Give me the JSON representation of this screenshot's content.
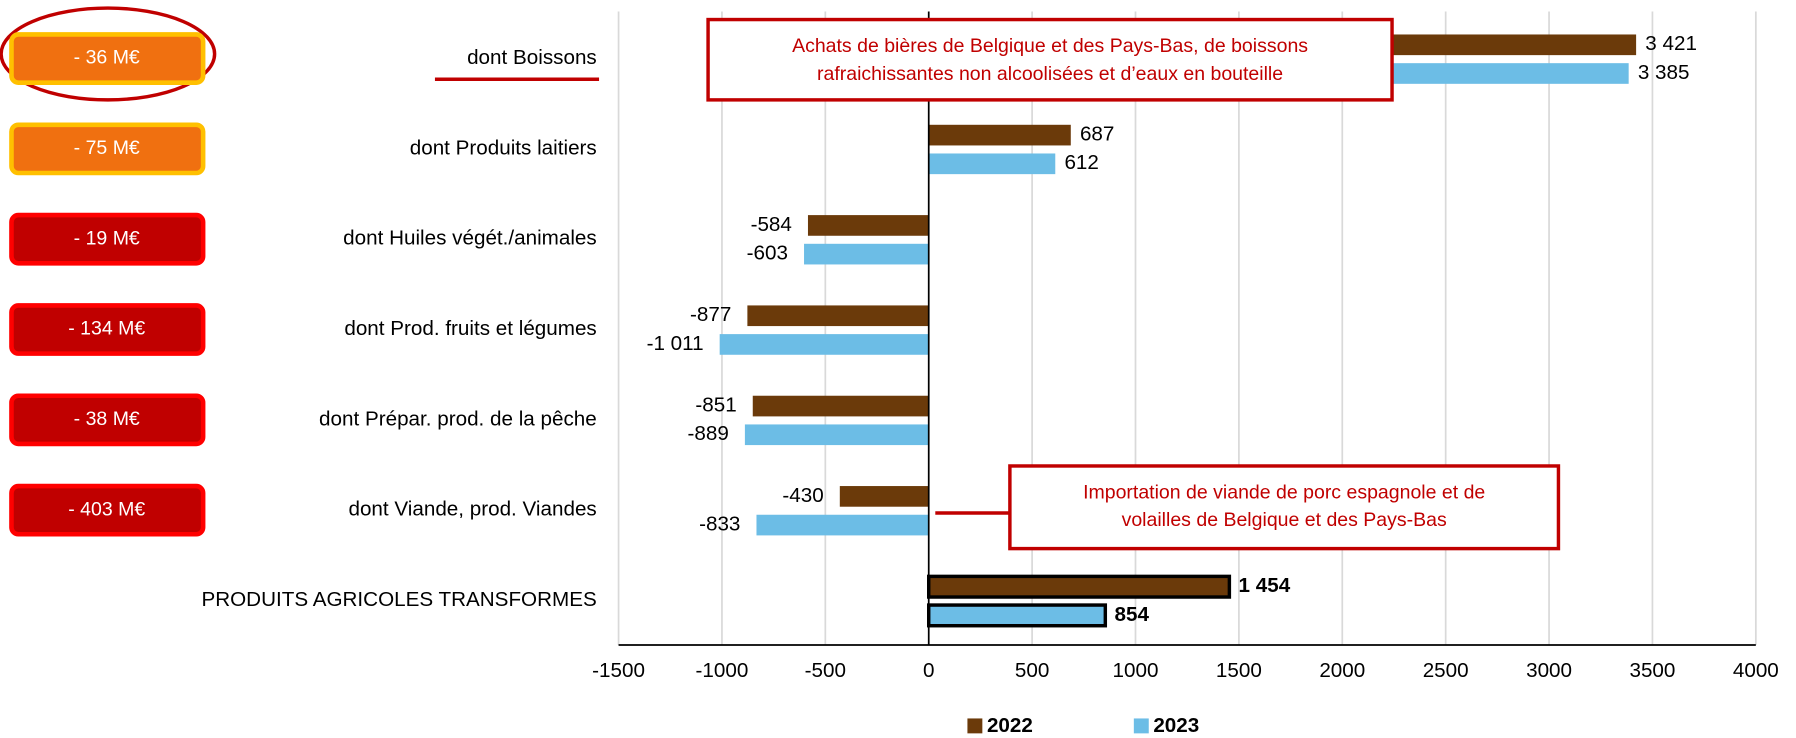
{
  "chart_data": {
    "type": "bar",
    "orientation": "horizontal",
    "categories": [
      "dont Boissons",
      "dont Produits laitiers",
      "dont Huiles végét./animales",
      "dont Prod. fruits et légumes",
      "dont Prépar. prod. de la pêche",
      "dont Viande, prod. Viandes",
      "PRODUITS AGRICOLES TRANSFORMES"
    ],
    "series": [
      {
        "name": "2022",
        "color": "#6b3a0a",
        "values": [
          3421,
          687,
          -584,
          -877,
          -851,
          -430,
          1454
        ],
        "value_labels": [
          "3 421",
          "687",
          "-584",
          "-877",
          "-851",
          "-430",
          "1 454"
        ]
      },
      {
        "name": "2023",
        "color": "#6cbde6",
        "values": [
          3385,
          612,
          -603,
          -1011,
          -889,
          -833,
          854
        ],
        "value_labels": [
          "3 385",
          "612",
          "-603",
          "-1 011",
          "-889",
          "-833",
          "854"
        ]
      }
    ],
    "xlim": [
      -1500,
      4000
    ],
    "xticks": [
      -1500,
      -1000,
      -500,
      0,
      500,
      1000,
      1500,
      2000,
      2500,
      3000,
      3500,
      4000
    ],
    "grid": true,
    "legend": "bottom",
    "badges": [
      {
        "label": "- 36 M€",
        "color": "#f07010",
        "border": "#ffc000"
      },
      {
        "label": "- 75 M€",
        "color": "#f07010",
        "border": "#ffc000"
      },
      {
        "label": "- 19 M€",
        "color": "#c00000",
        "border": "#ff0000"
      },
      {
        "label": "- 134 M€",
        "color": "#c00000",
        "border": "#ff0000"
      },
      {
        "label": "- 38 M€",
        "color": "#c00000",
        "border": "#ff0000"
      },
      {
        "label": "- 403 M€",
        "color": "#c00000",
        "border": "#ff0000"
      }
    ],
    "annotations": [
      {
        "lines": [
          "Achats de bières de Belgique et des Pays-Bas, de boissons",
          "rafraichissantes non alcoolisées et d’eaux en bouteille"
        ]
      },
      {
        "lines": [
          "Importation de viande de porc espagnole et de",
          "volailles de Belgique et des Pays-Bas"
        ]
      }
    ]
  }
}
